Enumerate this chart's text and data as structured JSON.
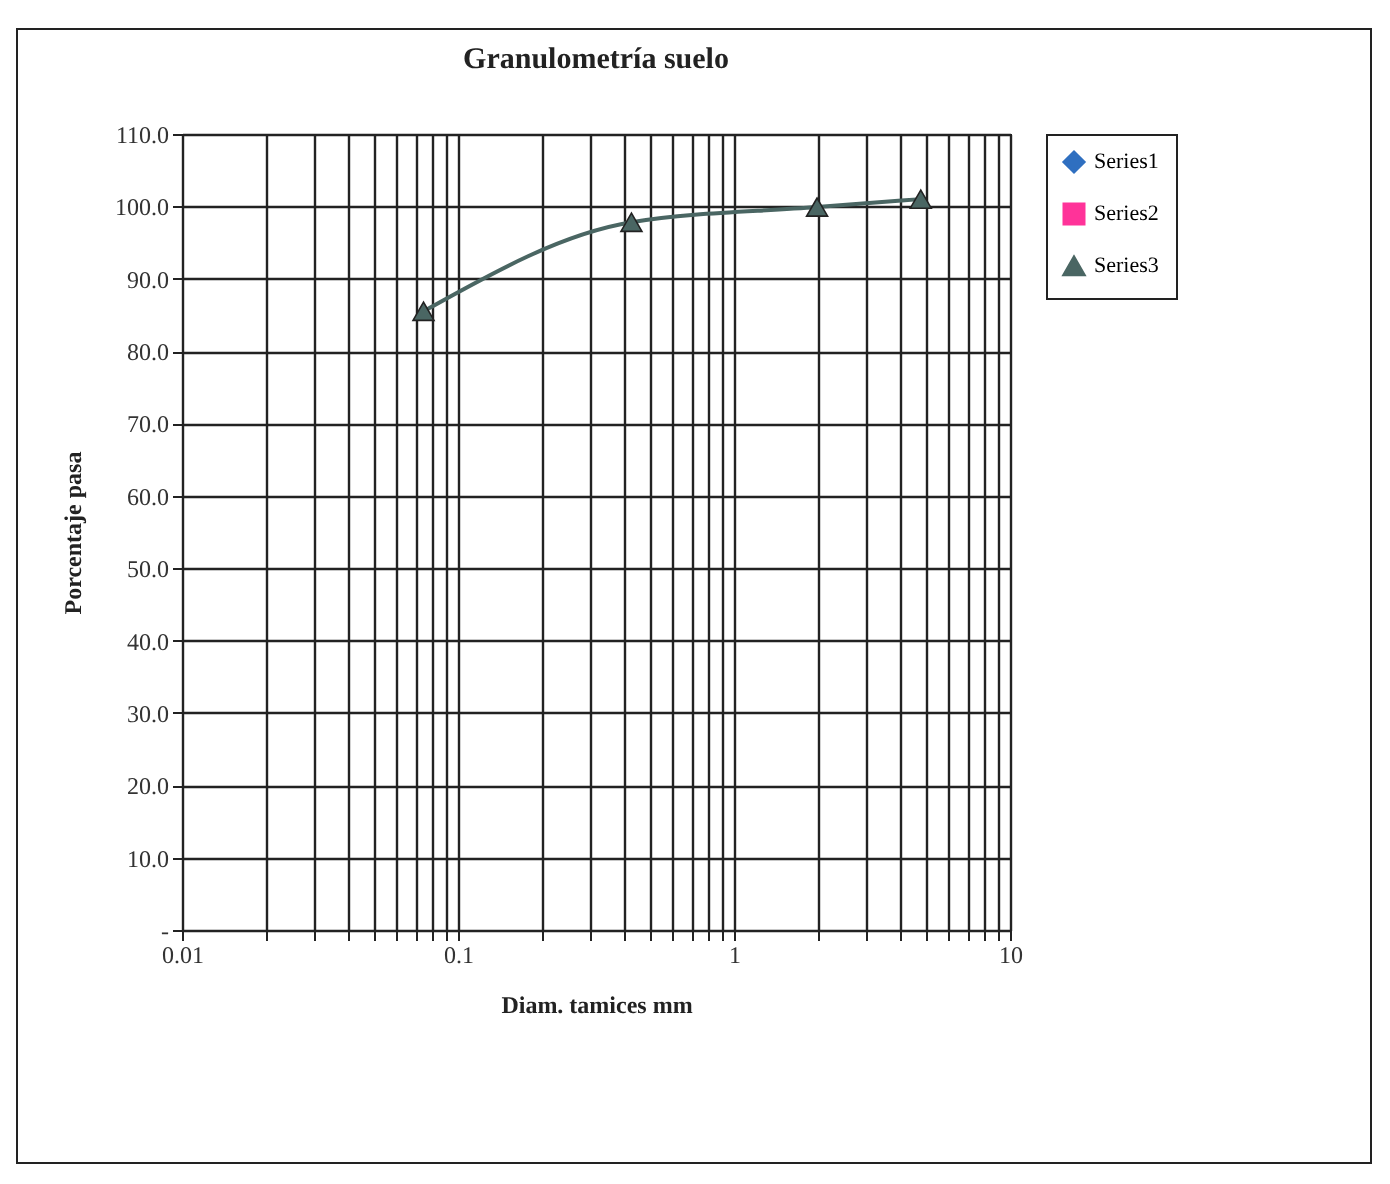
{
  "chart_data": {
    "type": "line",
    "title": "Granulometría  suelo",
    "xlabel": "Diam. tamices mm",
    "ylabel": "Porcentaje pasa",
    "log": "x",
    "grid": true,
    "legend": "right",
    "line_style": "solid",
    "xlim": [
      0.01,
      10
    ],
    "ylim": [
      0,
      110
    ],
    "xticks": [
      0.01,
      {
        "value": 0.02,
        "label": null
      },
      {
        "value": 0.03,
        "label": null
      },
      {
        "value": 0.04,
        "label": null
      },
      {
        "value": 0.05,
        "label": null
      },
      {
        "value": 0.06,
        "label": null
      },
      {
        "value": 0.07,
        "label": null
      },
      {
        "value": 0.08,
        "label": null
      },
      {
        "value": 0.09,
        "label": null
      },
      0.1,
      {
        "value": 0.2,
        "label": null
      },
      {
        "value": 0.3,
        "label": null
      },
      {
        "value": 0.4,
        "label": null
      },
      {
        "value": 0.5,
        "label": null
      },
      {
        "value": 0.6,
        "label": null
      },
      {
        "value": 0.7,
        "label": null
      },
      {
        "value": 0.8,
        "label": null
      },
      {
        "value": 0.9,
        "label": null
      },
      1,
      {
        "value": 2,
        "label": null
      },
      {
        "value": 3,
        "label": null
      },
      {
        "value": 4,
        "label": null
      },
      {
        "value": 5,
        "label": null
      },
      {
        "value": 6,
        "label": null
      },
      {
        "value": 7,
        "label": null
      },
      {
        "value": 8,
        "label": null
      },
      {
        "value": 9,
        "label": null
      },
      10
    ],
    "yticks": [
      {
        "value": 0,
        "label": "-"
      },
      {
        "value": 10,
        "label": "10.0"
      },
      {
        "value": 20,
        "label": "20.0"
      },
      {
        "value": 30,
        "label": "30.0"
      },
      {
        "value": 40,
        "label": "40.0"
      },
      {
        "value": 50,
        "label": "50.0"
      },
      {
        "value": 60,
        "label": "60.0"
      },
      {
        "value": 70,
        "label": "70.0"
      },
      {
        "value": 80,
        "label": "80.0"
      },
      {
        "value": 90,
        "label": "90.0"
      },
      {
        "value": 100,
        "label": "100.0"
      },
      {
        "value": 110,
        "label": "110.0"
      }
    ],
    "series": [
      {
        "name": "Series1",
        "color": "#2f6fc0",
        "marker": "diamond"
      },
      {
        "name": "Series2",
        "color": "#ff3399",
        "marker": "square"
      },
      {
        "name": "Series3",
        "color": "#4a6663",
        "marker": "triangle",
        "x": [
          0.075,
          0.425,
          2.0,
          4.75
        ],
        "values": [
          85.5,
          97.8,
          99.9,
          101.0
        ]
      }
    ]
  }
}
